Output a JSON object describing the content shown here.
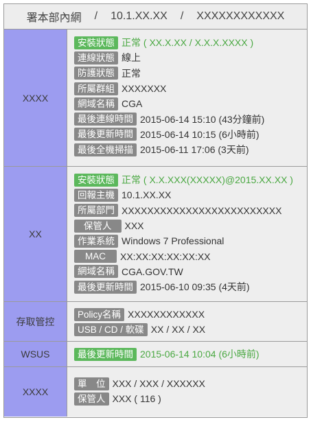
{
  "header": {
    "name": "署本部內網",
    "ip": "10.1.XX.XX",
    "host": "XXXXXXXXXXXX",
    "separator": "/"
  },
  "sections": {
    "s1": {
      "category": "XXXX",
      "rows": [
        {
          "label": "安裝狀態",
          "value": "正常 ( XX.X.XX / X.X.X.XXXX )"
        },
        {
          "label": "連線狀態",
          "value": "線上"
        },
        {
          "label": "防護狀態",
          "value": "正常"
        },
        {
          "label": "所屬群組",
          "value": "XXXXXXX"
        },
        {
          "label": "網域名稱",
          "value": "CGA"
        },
        {
          "label": "最後連線時間",
          "value": "2015-06-14 15:10",
          "note": "(43分鐘前)"
        },
        {
          "label": "最後更新時間",
          "value": "2015-06-14 10:15",
          "note": "(6小時前)"
        },
        {
          "label": "最後全機掃描",
          "value": "2015-06-11 17:06",
          "note": "(3天前)"
        }
      ]
    },
    "s2": {
      "category": "XX",
      "rows": [
        {
          "label": "安裝狀態",
          "value": "正常 ( X.X.XXX(XXXXX)@2015.XX.XX )"
        },
        {
          "label": "回報主機",
          "value": "10.1.XX.XX"
        },
        {
          "label": "所屬部門",
          "value": "XXXXXXXXXXXXXXXXXXXXXXXXX"
        },
        {
          "label": "保管人",
          "value": "XXX"
        },
        {
          "label": "作業系統",
          "value": "Windows 7 Professional"
        },
        {
          "label": "MAC",
          "value": "XX:XX:XX:XX:XX:XX"
        },
        {
          "label": "網域名稱",
          "value": "CGA.GOV.TW"
        },
        {
          "label": "最後更新時間",
          "value": "2015-06-10 09:35",
          "note": "(4天前)"
        }
      ]
    },
    "s3": {
      "category": "存取管控",
      "rows": [
        {
          "label": "Policy名稱",
          "value": "XXXXXXXXXXXX"
        },
        {
          "label": "USB / CD / 軟碟",
          "value": "XX / XX / XX"
        }
      ]
    },
    "s4": {
      "category": "WSUS",
      "rows": [
        {
          "label": "最後更新時間",
          "value": "2015-06-14 10:04",
          "note": "(6小時前)"
        }
      ]
    },
    "s5": {
      "category": "XXXX",
      "rows": [
        {
          "label": "單　位",
          "value": "XXX / XXX / XXXXXX"
        },
        {
          "label": "保管人",
          "value": "XXX ( 116 )"
        }
      ]
    }
  },
  "colors": {
    "category_bg": "#9c9cf0",
    "badge_gray": "#888888",
    "badge_green": "#5cb85c",
    "text_green": "#4aa842"
  }
}
